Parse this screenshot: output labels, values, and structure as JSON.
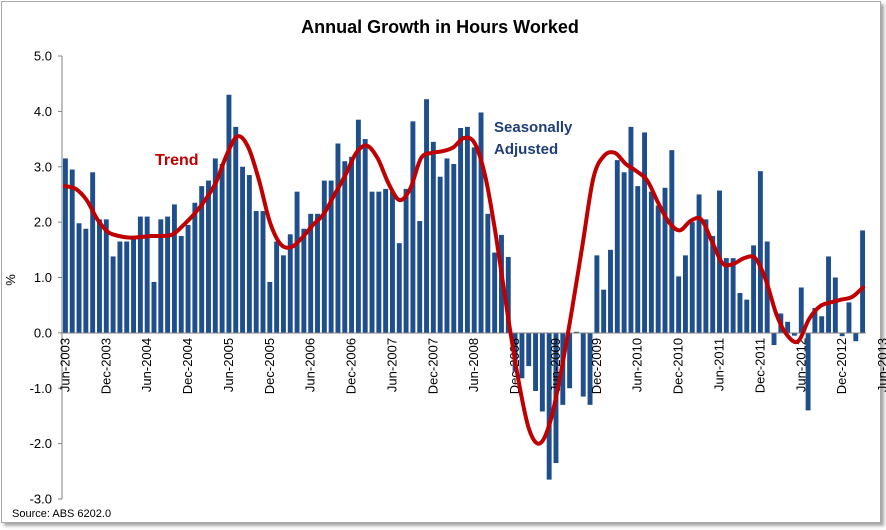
{
  "chart_data": {
    "type": "bar",
    "title": "Annual Growth in Hours Worked",
    "ylabel": "%",
    "xlabel": "",
    "ylim": [
      -3.0,
      5.0
    ],
    "yticks": [
      "5.0",
      "4.0",
      "3.0",
      "2.0",
      "1.0",
      "0.0",
      "-1.0",
      "-2.0",
      "-3.0"
    ],
    "grid": false,
    "x_tick_labels": [
      "Jun-2003",
      "Dec-2003",
      "Jun-2004",
      "Dec-2004",
      "Jun-2005",
      "Dec-2005",
      "Jun-2006",
      "Dec-2006",
      "Jun-2007",
      "Dec-2007",
      "Jun-2008",
      "Dec-2008",
      "Jun-2009",
      "Dec-2009",
      "Jun-2010",
      "Dec-2010",
      "Jun-2011",
      "Dec-2011",
      "Jun-2012",
      "Dec-2012",
      "Jun-2013"
    ],
    "source": "Source: ABS 6202.0",
    "annotations": {
      "trend_label": "Trend",
      "sa_label_line1": "Seasonally",
      "sa_label_line2": "Adjusted"
    },
    "colors": {
      "bars": "#1f4e8c",
      "trend": "#c00000",
      "sa_text": "#1f3f77"
    },
    "series": [
      {
        "name": "Seasonally Adjusted",
        "type": "bar",
        "values": [
          3.15,
          2.95,
          1.98,
          1.88,
          2.9,
          2.05,
          2.05,
          1.38,
          1.65,
          1.65,
          1.75,
          2.1,
          2.1,
          0.92,
          2.05,
          2.1,
          2.32,
          1.75,
          1.95,
          2.35,
          2.65,
          2.75,
          3.15,
          3.05,
          4.3,
          3.72,
          3.0,
          2.85,
          2.2,
          2.2,
          0.92,
          1.65,
          1.4,
          1.78,
          2.55,
          1.88,
          2.15,
          2.15,
          2.75,
          2.75,
          3.42,
          3.1,
          3.18,
          3.85,
          3.5,
          2.55,
          2.55,
          2.6,
          2.55,
          1.62,
          2.6,
          3.82,
          2.02,
          4.22,
          3.45,
          2.82,
          3.15,
          3.05,
          3.7,
          3.72,
          3.35,
          3.98,
          2.15,
          1.45,
          1.77,
          1.37,
          -0.7,
          -0.82,
          -0.6,
          -1.05,
          -1.42,
          -2.65,
          -2.35,
          -1.3,
          -1.0,
          0.02,
          -1.15,
          -1.3,
          1.4,
          0.78,
          1.5,
          3.12,
          2.9,
          3.72,
          2.65,
          3.62,
          2.55,
          2.3,
          2.62,
          3.3,
          1.02,
          1.4,
          2.0,
          2.5,
          2.05,
          1.75,
          2.57,
          1.35,
          1.35,
          0.72,
          0.6,
          1.58,
          2.92,
          1.65,
          -0.22,
          0.35,
          0.2,
          -0.05,
          0.82,
          -1.4,
          0.45,
          0.3,
          1.38,
          1.0,
          -0.06,
          0.55,
          -0.15,
          1.85
        ]
      },
      {
        "name": "Trend",
        "type": "line",
        "values": [
          2.65,
          2.6,
          2.4,
          2.05,
          1.82,
          1.75,
          1.72,
          1.73,
          1.75,
          1.75,
          1.78,
          1.95,
          2.15,
          2.4,
          2.72,
          3.22,
          3.55,
          3.35,
          2.75,
          2.0,
          1.6,
          1.55,
          1.72,
          1.95,
          2.15,
          2.5,
          2.85,
          3.25,
          3.38,
          3.15,
          2.7,
          2.4,
          2.6,
          3.15,
          3.25,
          3.28,
          3.35,
          3.52,
          3.42,
          2.8,
          1.7,
          0.4,
          -0.8,
          -1.72,
          -2.0,
          -1.6,
          -0.7,
          0.4,
          1.6,
          2.8,
          3.2,
          3.25,
          3.05,
          2.92,
          2.75,
          2.35,
          2.0,
          1.85,
          2.02,
          2.05,
          1.65,
          1.25,
          1.25,
          1.35,
          1.35,
          0.95,
          0.32,
          -0.05,
          -0.15,
          0.25,
          0.48,
          0.55,
          0.6,
          0.65,
          0.82
        ]
      }
    ]
  }
}
